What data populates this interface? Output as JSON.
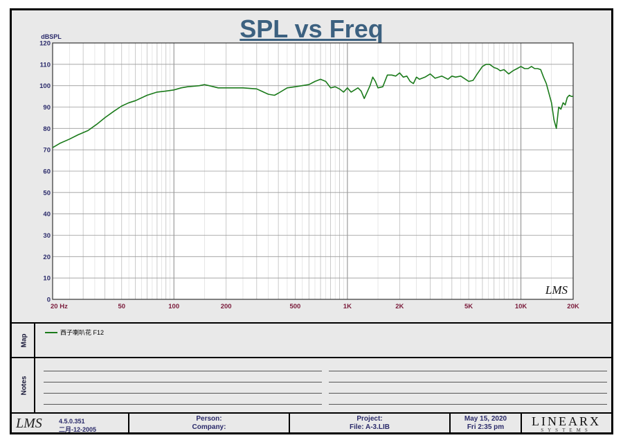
{
  "chart_data": {
    "type": "line",
    "title": "SPL vs Freq",
    "ylabel": "dBSPL",
    "xlabel": "",
    "xscale": "log",
    "xlim": [
      20,
      20000
    ],
    "ylim": [
      0,
      120
    ],
    "y_ticks": [
      "0",
      "10",
      "20",
      "30",
      "40",
      "50",
      "60",
      "70",
      "80",
      "90",
      "100",
      "110",
      "120"
    ],
    "x_ticks": [
      {
        "value": 20,
        "label": "20  Hz"
      },
      {
        "value": 50,
        "label": "50"
      },
      {
        "value": 100,
        "label": "100"
      },
      {
        "value": 200,
        "label": "200"
      },
      {
        "value": 500,
        "label": "500"
      },
      {
        "value": 1000,
        "label": "1K"
      },
      {
        "value": 2000,
        "label": "2K"
      },
      {
        "value": 5000,
        "label": "5K"
      },
      {
        "value": 10000,
        "label": "10K"
      },
      {
        "value": 20000,
        "label": "20K"
      }
    ],
    "grid": true,
    "watermark": "LMS",
    "series": [
      {
        "name": "西子喇叭花 F12",
        "color": "#1a7a1a",
        "x": [
          20,
          22,
          25,
          28,
          32,
          36,
          40,
          45,
          50,
          55,
          60,
          70,
          80,
          90,
          100,
          110,
          120,
          140,
          150,
          160,
          180,
          200,
          250,
          300,
          350,
          380,
          400,
          450,
          500,
          600,
          650,
          700,
          750,
          800,
          850,
          900,
          950,
          1000,
          1050,
          1100,
          1150,
          1200,
          1250,
          1300,
          1350,
          1400,
          1450,
          1500,
          1600,
          1700,
          1800,
          1900,
          2000,
          2100,
          2200,
          2300,
          2400,
          2500,
          2600,
          2800,
          3000,
          3200,
          3500,
          3800,
          4000,
          4200,
          4500,
          4800,
          5000,
          5300,
          5600,
          6000,
          6300,
          6600,
          7000,
          7300,
          7600,
          8000,
          8500,
          9000,
          9500,
          10000,
          10500,
          11000,
          11500,
          12000,
          12500,
          13000,
          13500,
          14000,
          15000,
          15500,
          16000,
          16500,
          17000,
          17500,
          18000,
          18500,
          19000,
          19500,
          20000
        ],
        "y": [
          71,
          73,
          75,
          77,
          79,
          82,
          85,
          88,
          90.5,
          92,
          93,
          95.5,
          97,
          97.5,
          98,
          99,
          99.5,
          100,
          100.5,
          100,
          99,
          99,
          99,
          98.5,
          96,
          95.5,
          96.5,
          99,
          99.5,
          100.5,
          102,
          103,
          102,
          99,
          99.5,
          98.5,
          97,
          99,
          97,
          98,
          99,
          97.5,
          94,
          97,
          100,
          104,
          102,
          99,
          99.5,
          105,
          105,
          104.5,
          106,
          104,
          104.5,
          102,
          101,
          104,
          103,
          104,
          105.5,
          103.5,
          104.5,
          103,
          104.5,
          104,
          104.5,
          103,
          102,
          102.5,
          105.5,
          109,
          110,
          110,
          108.5,
          108,
          107,
          107.5,
          105.5,
          107,
          108,
          109,
          108,
          108,
          109,
          108,
          108,
          107.5,
          104,
          101,
          92,
          84,
          80,
          90,
          89,
          92,
          91,
          94.5,
          95.5,
          95,
          95
        ]
      }
    ]
  },
  "map_label": "Map",
  "notes_label": "Notes",
  "footer": {
    "version": "4.5.0.351",
    "build_date": "二月-12-2005",
    "person_label": "Person:",
    "company_label": "Company:",
    "project_label": "Project:",
    "file_label": "File: A-3.LIB",
    "date": "May 15, 2020",
    "time": "Fri  2:35 pm",
    "logo_lms": "LMS",
    "brand_big": "LINEARX",
    "brand_small": "SYSTEMS"
  }
}
